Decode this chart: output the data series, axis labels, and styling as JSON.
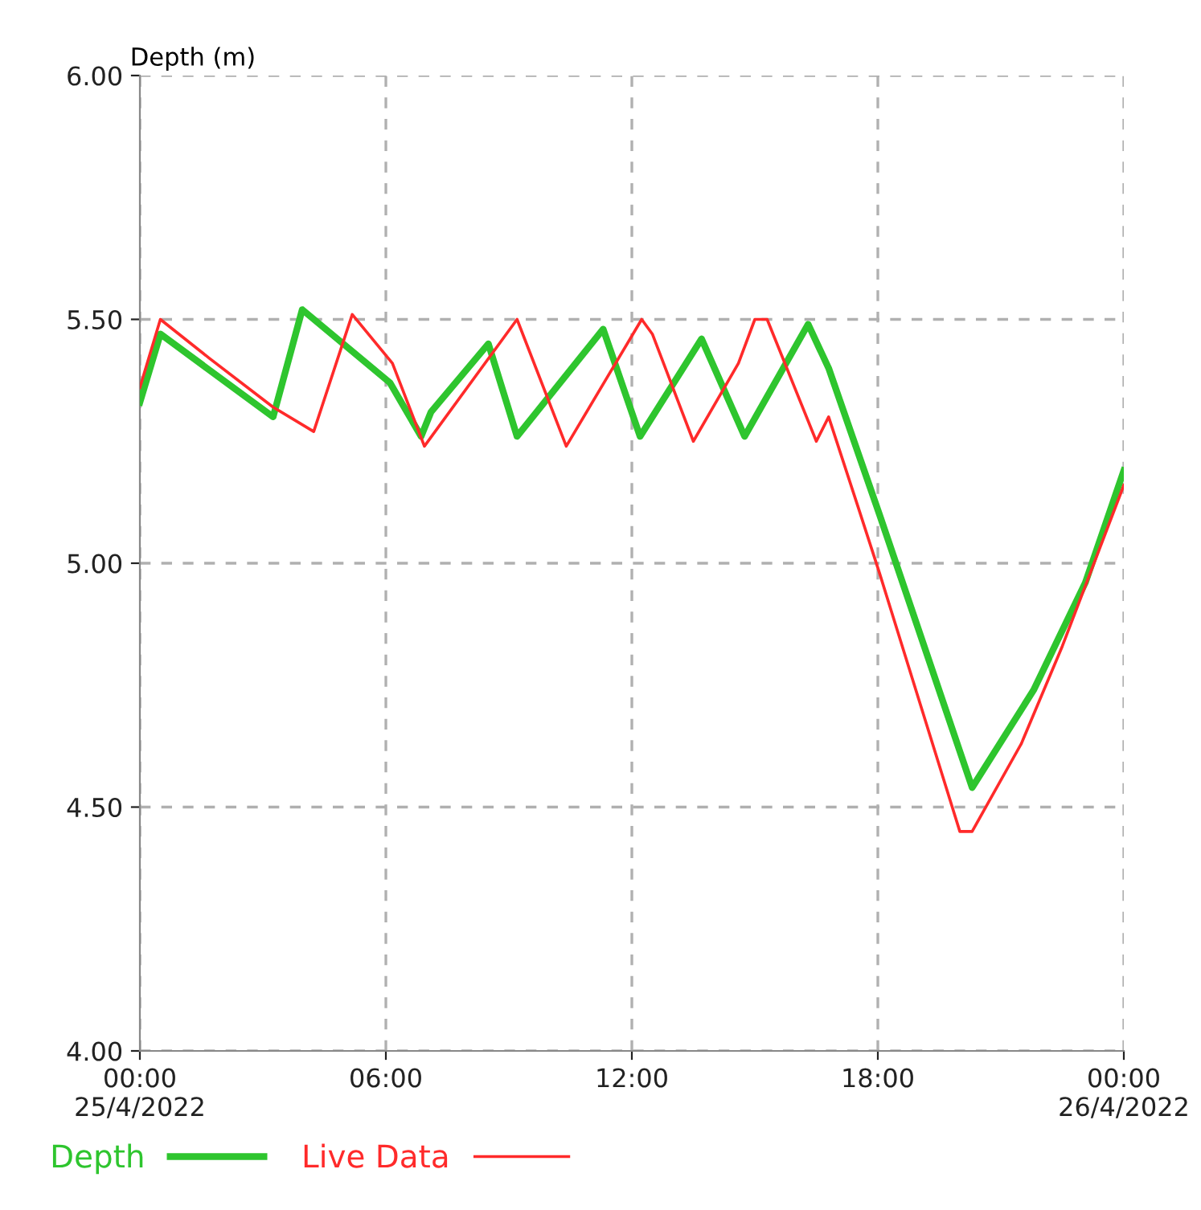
{
  "chart_data": {
    "type": "line",
    "ylabel": "Depth (m)",
    "xlim": [
      0,
      24
    ],
    "xticks": [
      {
        "value": 0,
        "label": "00:00\n25/4/2022"
      },
      {
        "value": 6,
        "label": "06:00"
      },
      {
        "value": 12,
        "label": "12:00"
      },
      {
        "value": 18,
        "label": "18:00"
      },
      {
        "value": 24,
        "label": "00:00\n26/4/2022"
      }
    ],
    "ylim": [
      4,
      6
    ],
    "yticks": [
      {
        "value": 4,
        "label": "4.00"
      },
      {
        "value": 4.5,
        "label": "4.50"
      },
      {
        "value": 5,
        "label": "5.00"
      },
      {
        "value": 5.5,
        "label": "5.50"
      },
      {
        "value": 6,
        "label": "6.00"
      }
    ],
    "grid": true,
    "legend": "bottom",
    "marker": "none",
    "series": [
      {
        "name": "Depth",
        "color": "#2ec52e",
        "x": [
          0,
          0.5,
          3.25,
          3.96,
          6.1,
          6.86,
          7.1,
          8.5,
          9.2,
          11.3,
          12.2,
          13.7,
          14.75,
          16.3,
          16.8,
          18.04,
          20.3,
          21.8,
          23.06,
          24
        ],
        "values": [
          5.33,
          5.47,
          5.3,
          5.52,
          5.37,
          5.26,
          5.31,
          5.45,
          5.26,
          5.48,
          5.26,
          5.46,
          5.26,
          5.49,
          5.4,
          5.1,
          4.54,
          4.74,
          4.96,
          5.19
        ]
      },
      {
        "name": "Live Data",
        "color": "#ff2a2a",
        "x": [
          0,
          0.5,
          1.7,
          3.25,
          4.24,
          5.18,
          6.16,
          6.94,
          9.2,
          10.4,
          12.24,
          12.5,
          13.5,
          14.6,
          15.0,
          15.3,
          16.5,
          16.8,
          17.5,
          18.04,
          20.0,
          20.3,
          21.5,
          22.5,
          24
        ],
        "values": [
          5.36,
          5.5,
          5.42,
          5.32,
          5.27,
          5.51,
          5.41,
          5.24,
          5.5,
          5.24,
          5.5,
          5.47,
          5.25,
          5.41,
          5.5,
          5.5,
          5.25,
          5.3,
          5.12,
          4.98,
          4.45,
          4.45,
          4.63,
          4.83,
          5.16
        ]
      }
    ]
  }
}
